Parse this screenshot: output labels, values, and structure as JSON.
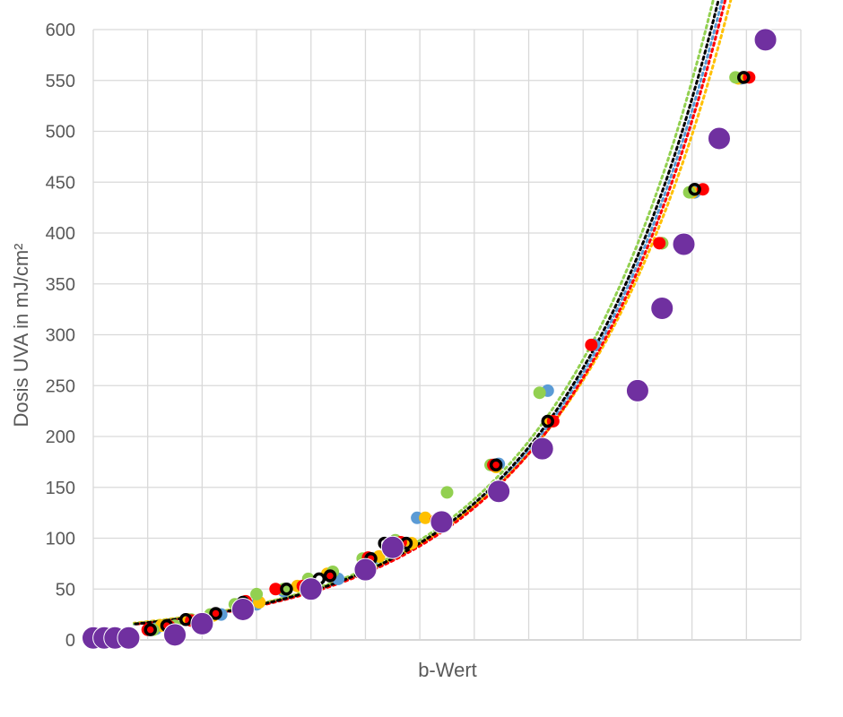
{
  "chart_data": {
    "type": "scatter",
    "title": "",
    "xlabel": "b-Wert",
    "ylabel": "Dosis UVA in mJ/cm²",
    "ylim": [
      0,
      600
    ],
    "xlim": [
      -0.5,
      12.5
    ],
    "y_ticks": [
      "0",
      "50",
      "100",
      "150",
      "200",
      "250",
      "300",
      "350",
      "400",
      "450",
      "500",
      "550",
      "600"
    ],
    "x_ticks_labeled": false,
    "grid": true,
    "legend": "none",
    "colors": {
      "blue": "#5b9bd5",
      "orange": "#ffc000",
      "green": "#92d050",
      "red": "#ff0000",
      "black": "#000000",
      "purple": "#7030a0",
      "grid": "#d9d9d9",
      "text": "#595959"
    },
    "series": [
      {
        "color": "#5b9bd5",
        "size": "small",
        "x": [
          -0.4,
          -0.3,
          0.2,
          0.65,
          1.45,
          1.85,
          2.5,
          3.0,
          3.45,
          4.0,
          4.65,
          4.95,
          5.45,
          6.95,
          7.85,
          8.7,
          9.95,
          10.55,
          11.4
        ],
        "y": [
          2,
          1,
          2,
          11,
          20,
          25,
          35,
          48,
          50,
          60,
          80,
          95,
          120,
          173,
          245,
          290,
          390,
          440,
          552
        ]
      },
      {
        "color": "#ffc000",
        "size": "small",
        "x": [
          -0.35,
          0.25,
          0.75,
          1.25,
          1.7,
          2.55,
          3.25,
          3.8,
          4.75,
          5.35,
          5.6,
          6.9,
          7.9,
          9.95,
          10.5,
          11.35
        ],
        "y": [
          1,
          2,
          14,
          20,
          24,
          37,
          53,
          65,
          82,
          95,
          120,
          170,
          215,
          390,
          440,
          552
        ]
      },
      {
        "color": "#92d050",
        "size": "small",
        "x": [
          -0.3,
          0.2,
          0.6,
          1.0,
          1.3,
          1.65,
          2.1,
          2.5,
          3.0,
          3.45,
          3.9,
          4.45,
          5.05,
          6.0,
          6.8,
          7.7,
          9.95,
          10.45,
          11.3
        ],
        "y": [
          1,
          1,
          10,
          14,
          20,
          25,
          35,
          45,
          50,
          60,
          67,
          80,
          98,
          145,
          172,
          243,
          390,
          440,
          553
        ]
      },
      {
        "color": "#ff0000",
        "size": "small",
        "x": [
          -0.3,
          0.15,
          0.5,
          0.9,
          1.3,
          1.75,
          2.3,
          2.85,
          3.35,
          3.85,
          4.55,
          5.15,
          5.8,
          6.85,
          7.95,
          8.65,
          9.9,
          10.7,
          11.55
        ],
        "y": [
          1,
          2,
          10,
          13,
          19,
          26,
          38,
          50,
          53,
          63,
          81,
          96,
          118,
          172,
          215,
          290,
          390,
          443,
          553
        ]
      },
      {
        "color": "#000000",
        "size": "ring",
        "x": [
          -0.3,
          0.1,
          0.55,
          0.85,
          1.2,
          1.75,
          2.25,
          3.05,
          3.65,
          3.85,
          4.6,
          4.85,
          5.0,
          5.25,
          6.9,
          7.85,
          10.55,
          11.45
        ],
        "y": [
          1,
          2,
          10,
          14,
          20,
          26,
          37,
          50,
          60,
          63,
          80,
          95,
          96,
          95,
          172,
          215,
          443,
          553
        ]
      },
      {
        "color": "#7030a0",
        "size": "large",
        "x": [
          -0.5,
          -0.3,
          -0.1,
          0.15,
          1.0,
          1.5,
          2.25,
          3.5,
          4.5,
          5.0,
          5.9,
          6.95,
          7.75,
          9.5,
          9.95,
          10.35,
          11.0,
          11.85
        ],
        "y": [
          2,
          2,
          2,
          2,
          5,
          16,
          30,
          50,
          69,
          91,
          116,
          146,
          188,
          245,
          326,
          389,
          493,
          590
        ]
      }
    ],
    "trendlines": [
      {
        "color": "#5b9bd5",
        "type": "exponential"
      },
      {
        "color": "#ffc000",
        "type": "exponential"
      },
      {
        "color": "#92d050",
        "type": "exponential"
      },
      {
        "color": "#ff0000",
        "type": "exponential"
      },
      {
        "color": "#000000",
        "type": "exponential"
      }
    ]
  }
}
